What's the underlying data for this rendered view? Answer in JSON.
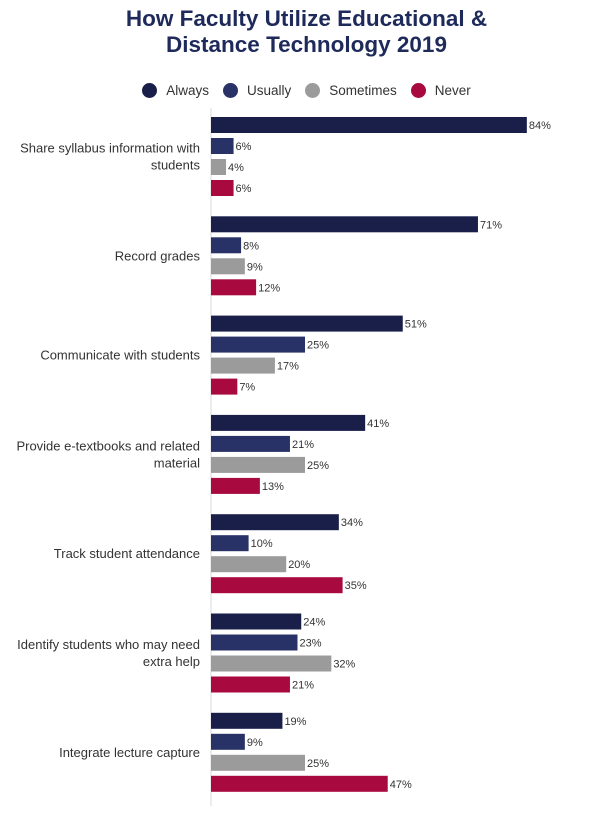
{
  "chart_data": {
    "type": "bar",
    "orientation": "horizontal",
    "title": [
      "How Faculty Utilize Educational &",
      "Distance Technology 2019"
    ],
    "legend_position": "top",
    "value_suffix": "%",
    "xlim": [
      0,
      100
    ],
    "grid": false,
    "categories": [
      [
        "Share syllabus information with",
        "students"
      ],
      [
        "Record grades"
      ],
      [
        "Communicate with students"
      ],
      [
        "Provide e-textbooks and related",
        "material"
      ],
      [
        "Track student attendance"
      ],
      [
        "Identify students who may need",
        "extra help"
      ],
      [
        "Integrate lecture capture"
      ]
    ],
    "series": [
      {
        "name": "Always",
        "color": "#1a1f4a",
        "values": [
          84,
          71,
          51,
          41,
          34,
          24,
          19
        ]
      },
      {
        "name": "Usually",
        "color": "#283266",
        "values": [
          6,
          8,
          25,
          21,
          10,
          23,
          9
        ]
      },
      {
        "name": "Sometimes",
        "color": "#9b9b9b",
        "values": [
          4,
          9,
          17,
          25,
          20,
          32,
          25
        ]
      },
      {
        "name": "Never",
        "color": "#a8093f",
        "values": [
          6,
          12,
          7,
          13,
          35,
          21,
          47
        ]
      }
    ]
  }
}
